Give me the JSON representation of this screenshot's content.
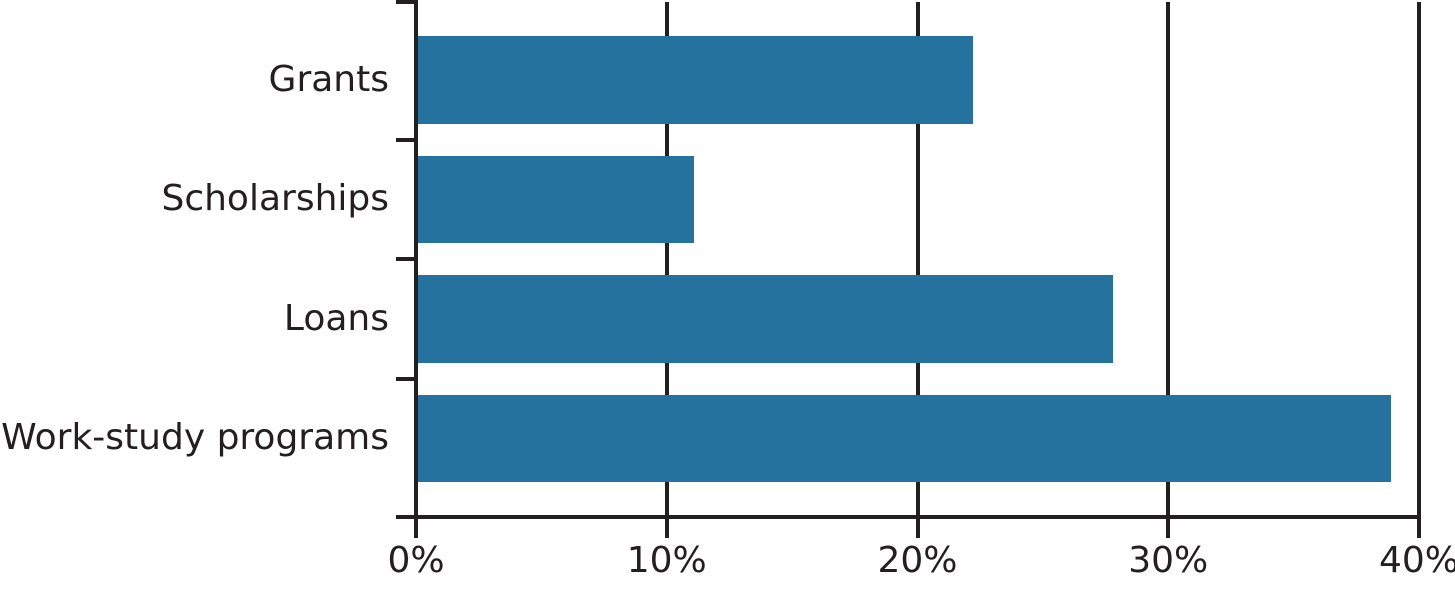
{
  "chart_data": {
    "type": "bar",
    "orientation": "horizontal",
    "categories": [
      "Grants",
      "Scholarships",
      "Loans",
      "Work-study programs"
    ],
    "values": [
      22.2,
      11.1,
      27.8,
      38.9
    ],
    "value_unit": "%",
    "x_ticks": [
      "0%",
      "10%",
      "20%",
      "30%",
      "40%"
    ],
    "x_tick_values": [
      0,
      10,
      20,
      30,
      40
    ],
    "xlim": [
      0,
      40
    ],
    "bar_color": "#25729E",
    "axis_color": "#231F20",
    "text_color": "#231F20",
    "grid": "vertical lines at every x tick, full plot height",
    "legend": "none",
    "title": "",
    "xlabel": "",
    "ylabel": ""
  }
}
